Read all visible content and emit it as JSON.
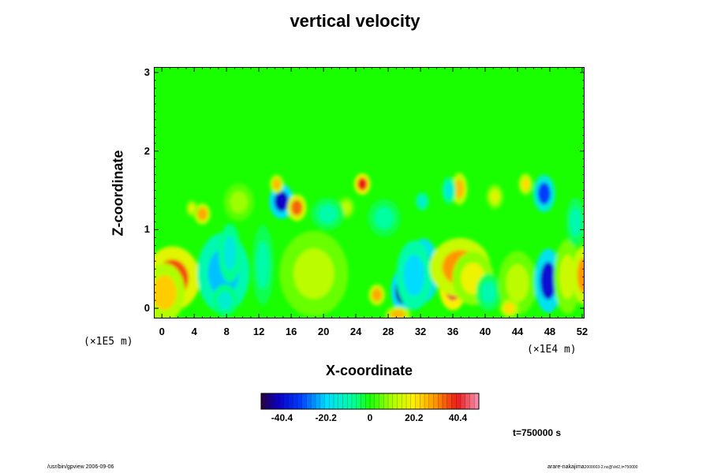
{
  "chart_data": {
    "type": "heatmap",
    "title": "vertical velocity",
    "xlabel": "X-coordinate",
    "ylabel": "Z-coordinate",
    "x_scale_label": "(×1E4 m)",
    "y_scale_label": "(×1E5 m)",
    "xlim": [
      -1,
      52.3
    ],
    "ylim": [
      -0.13,
      3.07
    ],
    "xticks": [
      "0",
      "4",
      "8",
      "12",
      "16",
      "20",
      "24",
      "28",
      "32",
      "36",
      "40",
      "44",
      "48",
      "52"
    ],
    "xtick_values": [
      0,
      4,
      8,
      12,
      16,
      20,
      24,
      28,
      32,
      36,
      40,
      44,
      48,
      52
    ],
    "yticks": [
      "0",
      "1",
      "2",
      "3"
    ],
    "ytick_values": [
      0,
      1,
      2,
      3
    ],
    "colorbar": {
      "range": [
        -50,
        50
      ],
      "ticks": [
        "-40.4",
        "-20.2",
        "0",
        "20.2",
        "40.4"
      ],
      "tick_values": [
        -40.4,
        -20.2,
        0,
        20.2,
        40.4
      ]
    },
    "features": [
      {
        "x": 1.3,
        "z": 0.38,
        "value": 36,
        "rx": 2.0,
        "rz": 0.24
      },
      {
        "x": 0.3,
        "z": 0.2,
        "value": 24,
        "rx": 1.5,
        "rz": 0.22
      },
      {
        "x": 7.6,
        "z": 0.45,
        "value": -22,
        "rx": 1.9,
        "rz": 0.3
      },
      {
        "x": 8.4,
        "z": 0.7,
        "value": -16,
        "rx": 0.8,
        "rz": 0.22
      },
      {
        "x": 7.8,
        "z": 0.1,
        "value": -14,
        "rx": 0.9,
        "rz": 0.12
      },
      {
        "x": 12.5,
        "z": 0.55,
        "value": -9,
        "rx": 0.8,
        "rz": 0.3
      },
      {
        "x": 14.8,
        "z": 1.36,
        "value": -42,
        "rx": 0.9,
        "rz": 0.13
      },
      {
        "x": 16.7,
        "z": 1.28,
        "value": 34,
        "rx": 0.7,
        "rz": 0.1
      },
      {
        "x": 14.2,
        "z": 1.58,
        "value": 26,
        "rx": 0.5,
        "rz": 0.07
      },
      {
        "x": 5.0,
        "z": 1.2,
        "value": 28,
        "rx": 0.6,
        "rz": 0.08
      },
      {
        "x": 3.7,
        "z": 1.27,
        "value": 16,
        "rx": 0.4,
        "rz": 0.06
      },
      {
        "x": 18.8,
        "z": 0.44,
        "value": 12,
        "rx": 2.5,
        "rz": 0.32
      },
      {
        "x": 22.8,
        "z": 1.28,
        "value": 12,
        "rx": 0.6,
        "rz": 0.08
      },
      {
        "x": 24.8,
        "z": 1.58,
        "value": 40,
        "rx": 0.6,
        "rz": 0.08
      },
      {
        "x": 26.6,
        "z": 0.17,
        "value": 28,
        "rx": 0.6,
        "rz": 0.08
      },
      {
        "x": 29.7,
        "z": 0.22,
        "value": -44,
        "rx": 0.8,
        "rz": 0.16
      },
      {
        "x": 32.4,
        "z": 0.48,
        "value": -38,
        "rx": 1.1,
        "rz": 0.24
      },
      {
        "x": 31.2,
        "z": 0.42,
        "value": -20,
        "rx": 1.3,
        "rz": 0.26
      },
      {
        "x": 36.0,
        "z": 0.28,
        "value": 42,
        "rx": 1.0,
        "rz": 0.18
      },
      {
        "x": 36.9,
        "z": 0.52,
        "value": 30,
        "rx": 2.2,
        "rz": 0.22
      },
      {
        "x": 38.5,
        "z": 0.38,
        "value": 18,
        "rx": 1.5,
        "rz": 0.2
      },
      {
        "x": 36.8,
        "z": 1.52,
        "value": 26,
        "rx": 0.6,
        "rz": 0.12
      },
      {
        "x": 35.5,
        "z": 1.5,
        "value": -16,
        "rx": 0.5,
        "rz": 0.1
      },
      {
        "x": 32.2,
        "z": 1.36,
        "value": -14,
        "rx": 0.5,
        "rz": 0.07
      },
      {
        "x": 41.2,
        "z": 1.42,
        "value": 16,
        "rx": 0.6,
        "rz": 0.09
      },
      {
        "x": 40.4,
        "z": 0.2,
        "value": -10,
        "rx": 0.9,
        "rz": 0.14
      },
      {
        "x": 44.0,
        "z": 0.32,
        "value": 12,
        "rx": 1.4,
        "rz": 0.24
      },
      {
        "x": 47.8,
        "z": 0.35,
        "value": -40,
        "rx": 1.0,
        "rz": 0.24
      },
      {
        "x": 47.3,
        "z": 1.46,
        "value": -32,
        "rx": 0.8,
        "rz": 0.14
      },
      {
        "x": 45.0,
        "z": 1.58,
        "value": 22,
        "rx": 0.5,
        "rz": 0.08
      },
      {
        "x": 50.2,
        "z": 0.4,
        "value": 14,
        "rx": 1.0,
        "rz": 0.28
      },
      {
        "x": 52.2,
        "z": 0.42,
        "value": 30,
        "rx": 0.8,
        "rz": 0.22
      },
      {
        "x": 51.2,
        "z": 1.1,
        "value": -10,
        "rx": 0.7,
        "rz": 0.18
      },
      {
        "x": 20.5,
        "z": 1.2,
        "value": -9,
        "rx": 1.2,
        "rz": 0.12
      },
      {
        "x": 27.5,
        "z": 1.15,
        "value": -8,
        "rx": 1.2,
        "rz": 0.14
      },
      {
        "x": 9.5,
        "z": 1.35,
        "value": 9,
        "rx": 1.1,
        "rz": 0.14
      },
      {
        "x": 43.0,
        "z": 0.0,
        "value": 22,
        "rx": 0.7,
        "rz": 0.07
      },
      {
        "x": 29.2,
        "z": -0.08,
        "value": 26,
        "rx": 0.9,
        "rz": 0.06
      }
    ]
  },
  "annotations": {
    "time": "t=750000 s",
    "footer_left": "/usr/bin/gpview 2006-09-06",
    "footer_right": "arare-nakajima",
    "footer_right_small": "2000003-2.nc@Vel2,t=750000"
  }
}
